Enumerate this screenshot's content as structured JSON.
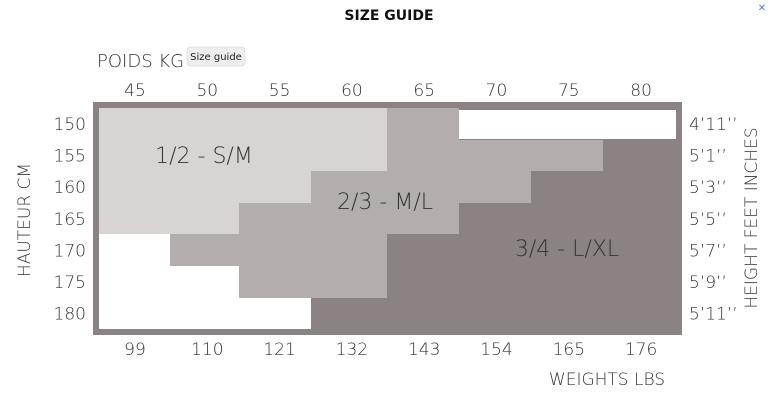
{
  "header": {
    "title": "SIZE GUIDE",
    "tooltip": "Size guide"
  },
  "guide": {
    "top_axis_title": "POIDS KG",
    "top_ticks": [
      "45",
      "50",
      "55",
      "60",
      "65",
      "70",
      "75",
      "80"
    ],
    "bottom_axis_title": "WEIGHTS LBS",
    "bottom_ticks": [
      "99",
      "110",
      "121",
      "132",
      "143",
      "154",
      "165",
      "176"
    ],
    "left_axis_title": "HAUTEUR CM",
    "left_ticks": [
      "150",
      "155",
      "160",
      "165",
      "170",
      "175",
      "180"
    ],
    "right_axis_title": "HEIGHT FEET INCHES",
    "right_ticks": [
      "4’11’’",
      "5’1’’",
      "5’3’’",
      "5’5’’",
      "5’7’’",
      "5’9’’",
      "5’11’’"
    ],
    "zones": [
      "1/2 - S/M",
      "2/3 - M/L",
      "3/4 - L/XL"
    ]
  }
}
